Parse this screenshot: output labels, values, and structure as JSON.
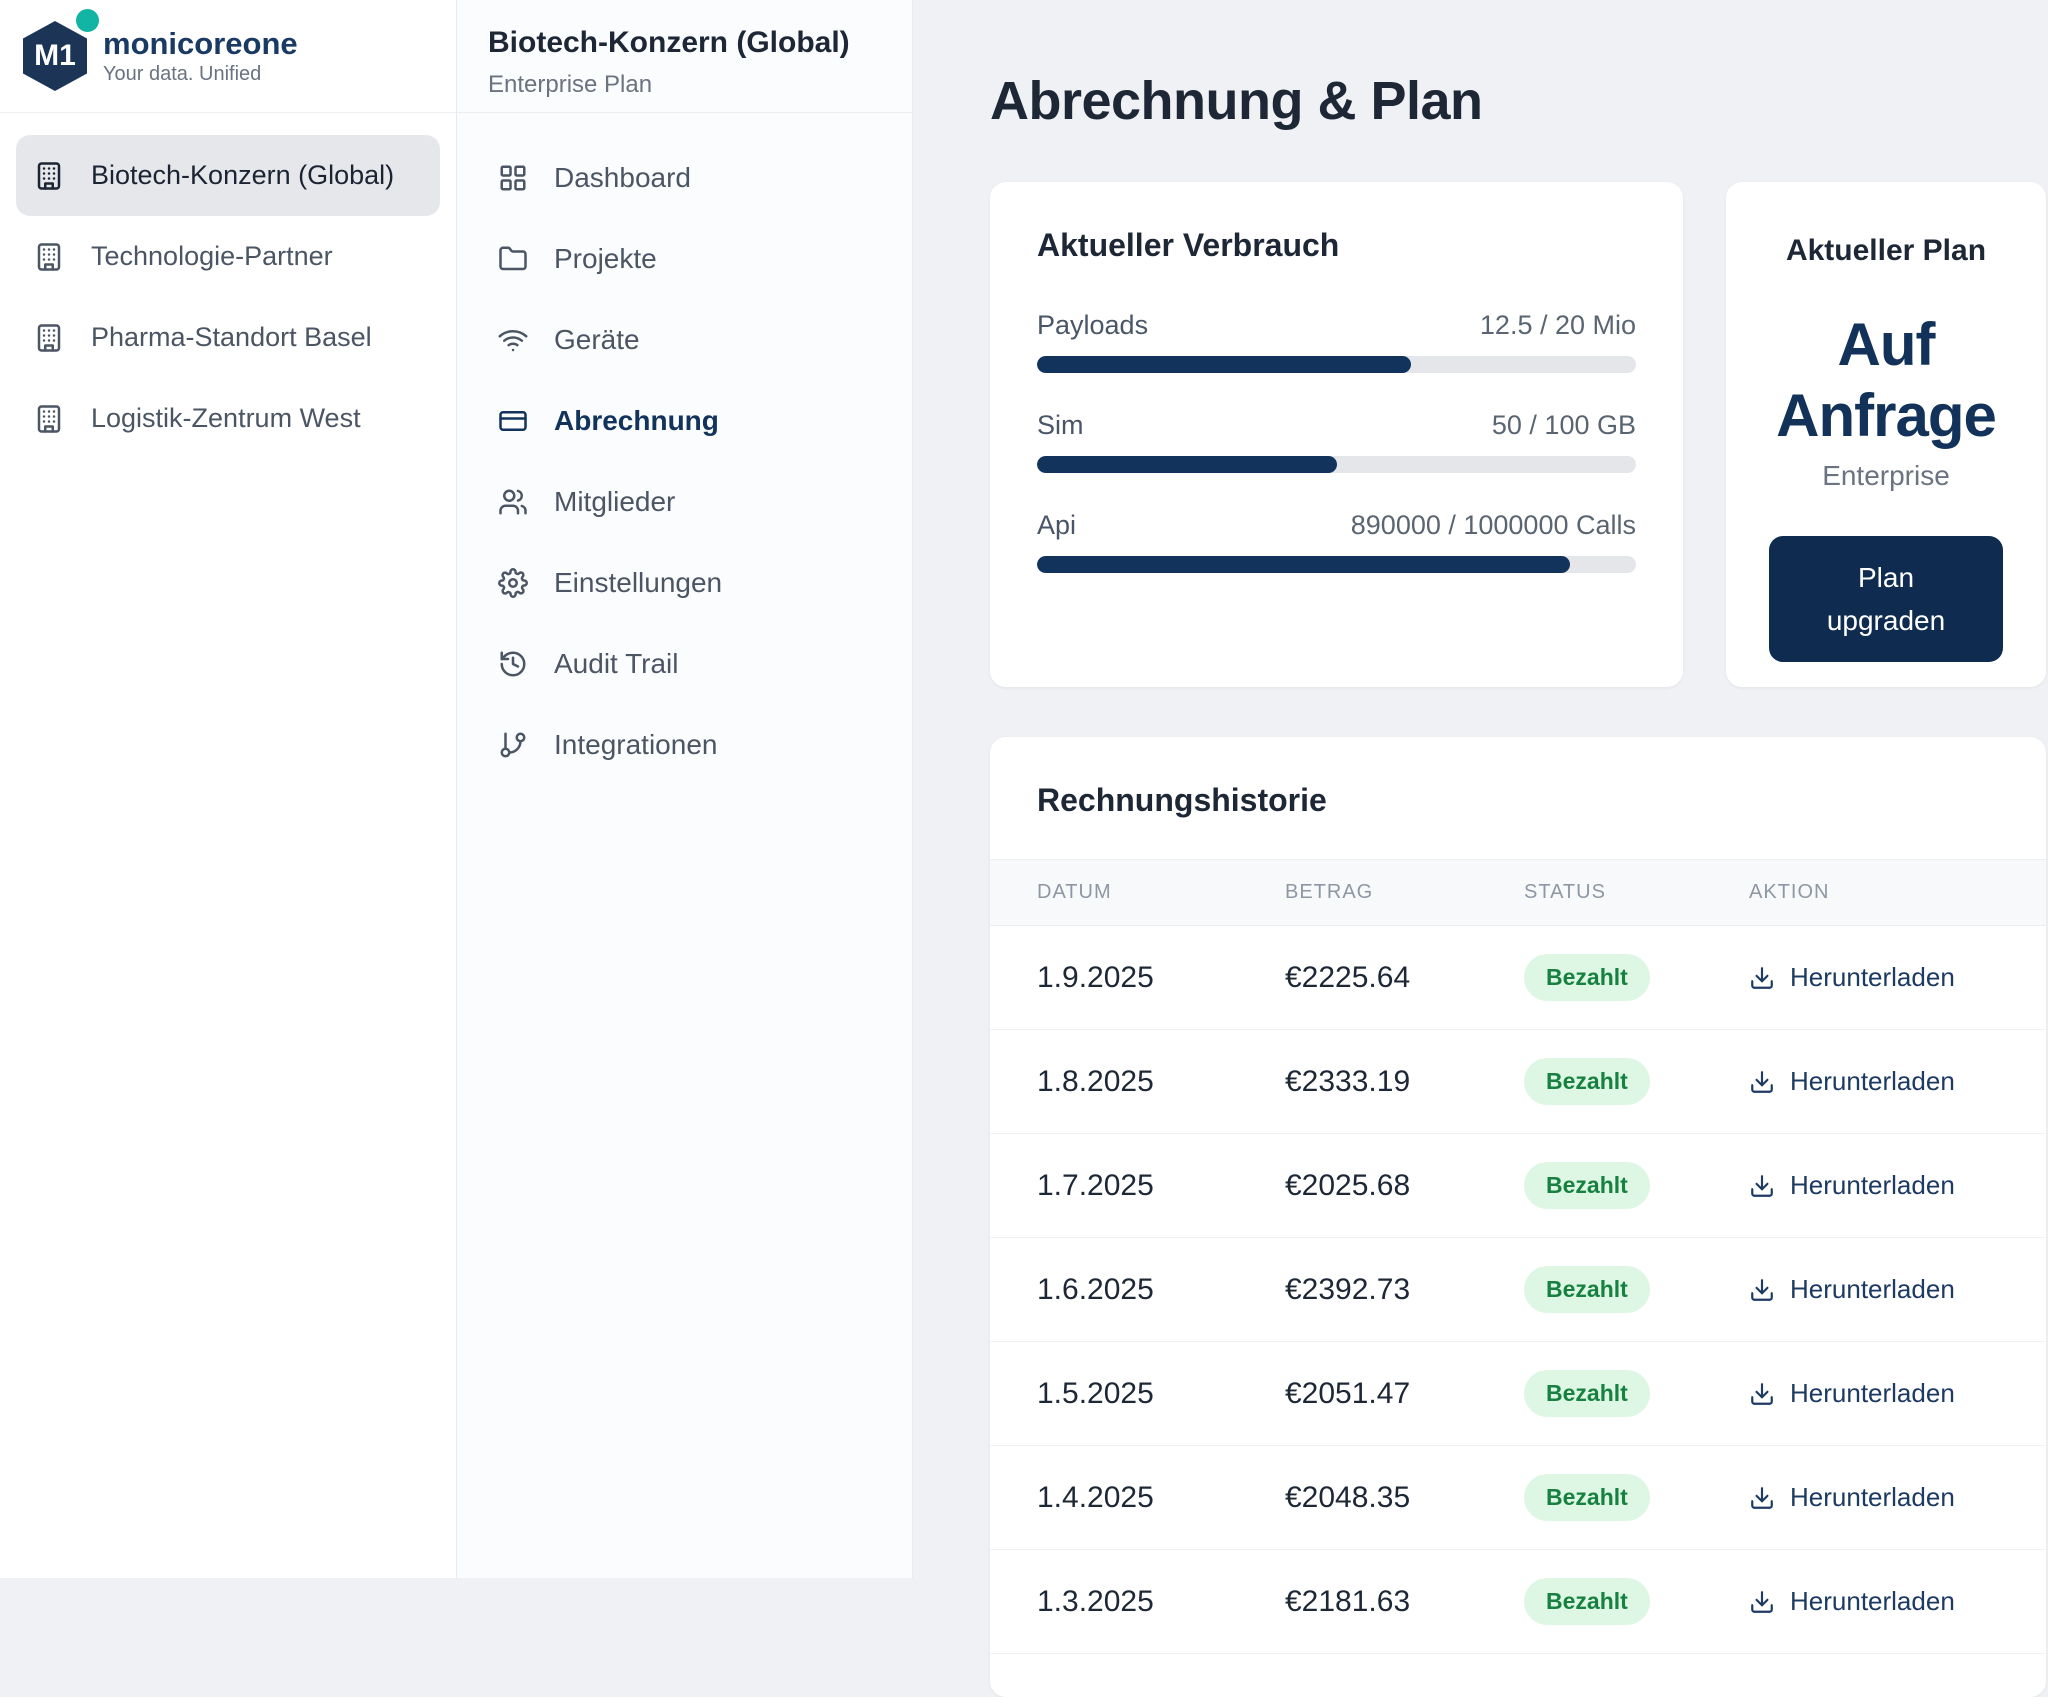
{
  "colors": {
    "navy_accent": "#12335c",
    "button_navy": "#0f2c50",
    "brand_navy": "#1a3a66",
    "teal_dot": "#12b5a3",
    "status_green_bg": "#def7e4",
    "status_green_text": "#17813f",
    "main_bg": "#f0f1f4",
    "track_gray": "#e4e6ea"
  },
  "brand": {
    "logo_text": "M1",
    "name": "monicoreone",
    "tagline": "Your data. Unified"
  },
  "org_sidebar": {
    "items": [
      {
        "label": "Biotech-Konzern (Global)",
        "active": true
      },
      {
        "label": "Technologie-Partner",
        "active": false
      },
      {
        "label": "Pharma-Standort Basel",
        "active": false
      },
      {
        "label": "Logistik-Zentrum West",
        "active": false
      }
    ]
  },
  "workspace_sidebar": {
    "title": "Biotech-Konzern (Global)",
    "subtitle": "Enterprise Plan",
    "items": [
      {
        "label": "Dashboard",
        "icon": "dashboard-grid",
        "active": false
      },
      {
        "label": "Projekte",
        "icon": "folder",
        "active": false
      },
      {
        "label": "Geräte",
        "icon": "wifi",
        "active": false
      },
      {
        "label": "Abrechnung",
        "icon": "credit-card",
        "active": true
      },
      {
        "label": "Mitglieder",
        "icon": "users",
        "active": false
      },
      {
        "label": "Einstellungen",
        "icon": "gear",
        "active": false
      },
      {
        "label": "Audit Trail",
        "icon": "history",
        "active": false
      },
      {
        "label": "Integrationen",
        "icon": "git-branch",
        "active": false
      }
    ]
  },
  "main": {
    "page_title": "Abrechnung & Plan",
    "usage_card": {
      "title": "Aktueller Verbrauch",
      "meters": [
        {
          "label": "Payloads",
          "value_text": "12.5 / 20 Mio",
          "used": 12.5,
          "limit": 20,
          "unit": "Mio",
          "percent": 62.5
        },
        {
          "label": "Sim",
          "value_text": "50 / 100 GB",
          "used": 50,
          "limit": 100,
          "unit": "GB",
          "percent": 50
        },
        {
          "label": "Api",
          "value_text": "890000 / 1000000 Calls",
          "used": 890000,
          "limit": 1000000,
          "unit": "Calls",
          "percent": 89
        }
      ]
    },
    "plan_card": {
      "title": "Aktueller Plan",
      "plan_name": "Auf Anfrage",
      "plan_tier": "Enterprise",
      "button_label": "Plan upgraden"
    },
    "invoice_card": {
      "title": "Rechnungshistorie",
      "columns": [
        "DATUM",
        "BETRAG",
        "STATUS",
        "AKTION"
      ],
      "action_label": "Herunterladen",
      "rows": [
        {
          "date": "1.9.2025",
          "amount": "€2225.64",
          "status": "Bezahlt"
        },
        {
          "date": "1.8.2025",
          "amount": "€2333.19",
          "status": "Bezahlt"
        },
        {
          "date": "1.7.2025",
          "amount": "€2025.68",
          "status": "Bezahlt"
        },
        {
          "date": "1.6.2025",
          "amount": "€2392.73",
          "status": "Bezahlt"
        },
        {
          "date": "1.5.2025",
          "amount": "€2051.47",
          "status": "Bezahlt"
        },
        {
          "date": "1.4.2025",
          "amount": "€2048.35",
          "status": "Bezahlt"
        },
        {
          "date": "1.3.2025",
          "amount": "€2181.63",
          "status": "Bezahlt"
        }
      ]
    }
  }
}
